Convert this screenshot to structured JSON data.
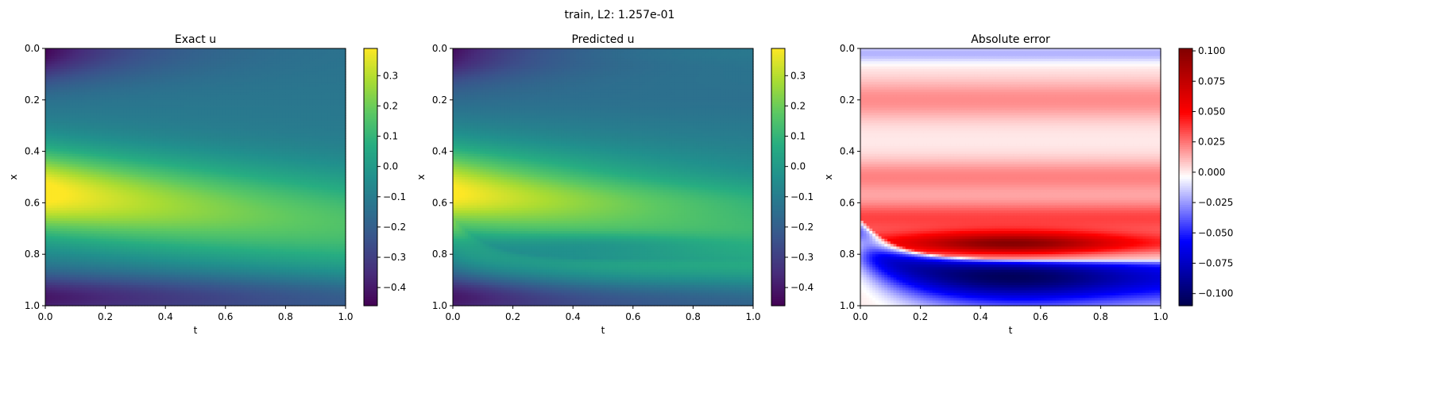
{
  "suptitle": "train, L2: 1.257e-01",
  "chart_data": [
    {
      "type": "heatmap",
      "title": "Exact u",
      "xlabel": "t",
      "ylabel": "x",
      "xlim": [
        0.0,
        1.0
      ],
      "ylim": [
        1.0,
        0.0
      ],
      "xticks": [
        "0.0",
        "0.2",
        "0.4",
        "0.6",
        "0.8",
        "1.0"
      ],
      "yticks": [
        "0.0",
        "0.2",
        "0.4",
        "0.6",
        "0.8",
        "1.0"
      ],
      "colormap": "viridis",
      "colorbar_range": [
        -0.46,
        0.39
      ],
      "colorbar_ticks": [
        "0.3",
        "0.2",
        "0.1",
        "0.0",
        "−0.1",
        "−0.2",
        "−0.3",
        "−0.4"
      ],
      "field": "exact"
    },
    {
      "type": "heatmap",
      "title": "Predicted u",
      "xlabel": "t",
      "ylabel": "x",
      "xlim": [
        0.0,
        1.0
      ],
      "ylim": [
        1.0,
        0.0
      ],
      "xticks": [
        "0.0",
        "0.2",
        "0.4",
        "0.6",
        "0.8",
        "1.0"
      ],
      "yticks": [
        "0.0",
        "0.2",
        "0.4",
        "0.6",
        "0.8",
        "1.0"
      ],
      "colormap": "viridis",
      "colorbar_range": [
        -0.46,
        0.39
      ],
      "colorbar_ticks": [
        "0.3",
        "0.2",
        "0.1",
        "0.0",
        "−0.1",
        "−0.2",
        "−0.3",
        "−0.4"
      ],
      "field": "predicted"
    },
    {
      "type": "heatmap",
      "title": "Absolute error",
      "xlabel": "t",
      "ylabel": "x",
      "xlim": [
        0.0,
        1.0
      ],
      "ylim": [
        1.0,
        0.0
      ],
      "xticks": [
        "0.0",
        "0.2",
        "0.4",
        "0.6",
        "0.8",
        "1.0"
      ],
      "yticks": [
        "0.0",
        "0.2",
        "0.4",
        "0.6",
        "0.8",
        "1.0"
      ],
      "colormap": "seismic",
      "colorbar_range": [
        -0.11,
        0.102
      ],
      "colorbar_ticks": [
        "0.100",
        "0.075",
        "0.050",
        "0.025",
        "0.000",
        "−0.025",
        "−0.050",
        "−0.075",
        "−0.100"
      ],
      "field": "error"
    }
  ]
}
